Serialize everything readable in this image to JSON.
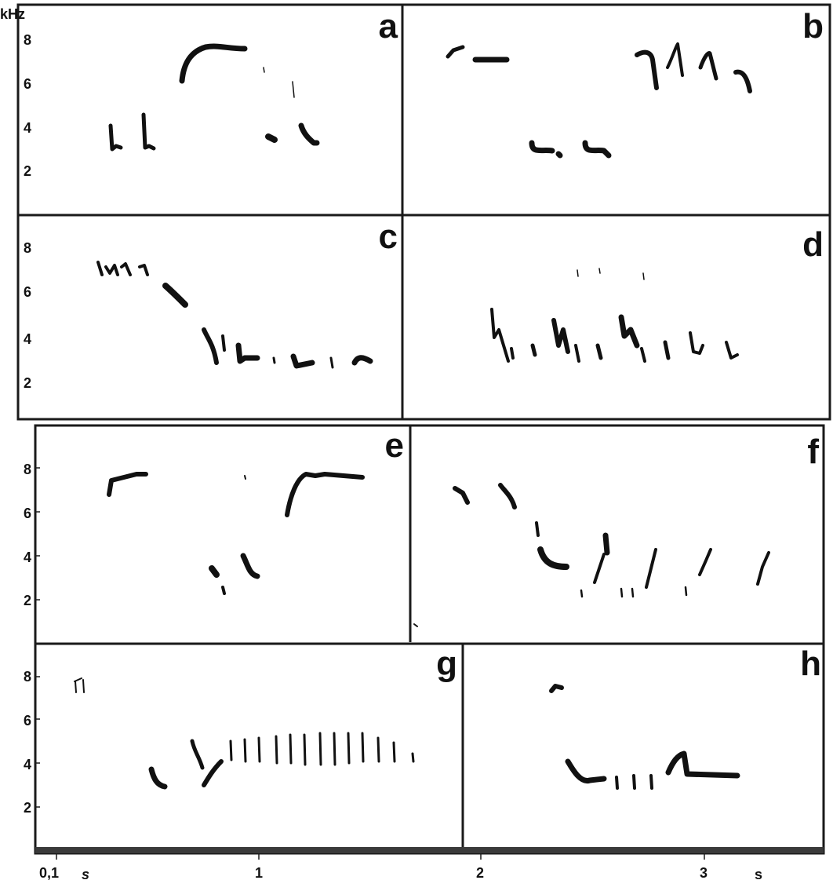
{
  "figure": {
    "y_unit": "kHz",
    "x_unit": "s",
    "x_ticks": [
      "0,1",
      "1",
      "2",
      "3"
    ],
    "y_ticks": [
      "2",
      "4",
      "6",
      "8"
    ]
  },
  "panels": [
    {
      "letter": "a"
    },
    {
      "letter": "b"
    },
    {
      "letter": "c"
    },
    {
      "letter": "d"
    },
    {
      "letter": "e"
    },
    {
      "letter": "f"
    },
    {
      "letter": "g"
    },
    {
      "letter": "h"
    }
  ],
  "colors": {
    "ink": "#111111",
    "paper": "#ffffff",
    "frame": "#1a1a1a"
  }
}
